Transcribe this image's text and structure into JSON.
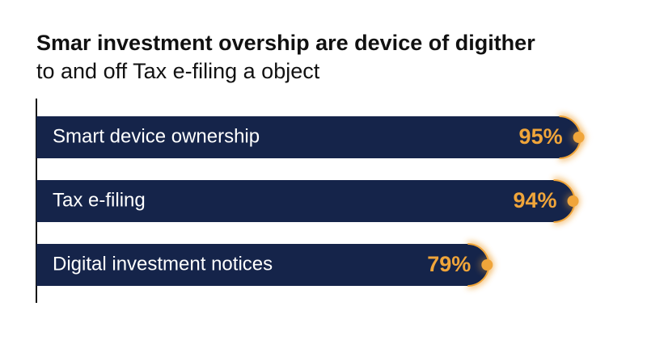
{
  "chart_data": {
    "type": "bar",
    "orientation": "horizontal",
    "title": "Smar investment overship are device of digither",
    "subtitle": "to and off Tax e-filing a object",
    "categories": [
      "Smart device ownership",
      "Tax e-filing",
      "Digital investment notices"
    ],
    "values": [
      95,
      94,
      79
    ],
    "value_labels": [
      "95%",
      "94%",
      "79%"
    ],
    "color": "#15244a",
    "accent_color": "#f0a53a",
    "xlim": [
      0,
      100
    ]
  }
}
